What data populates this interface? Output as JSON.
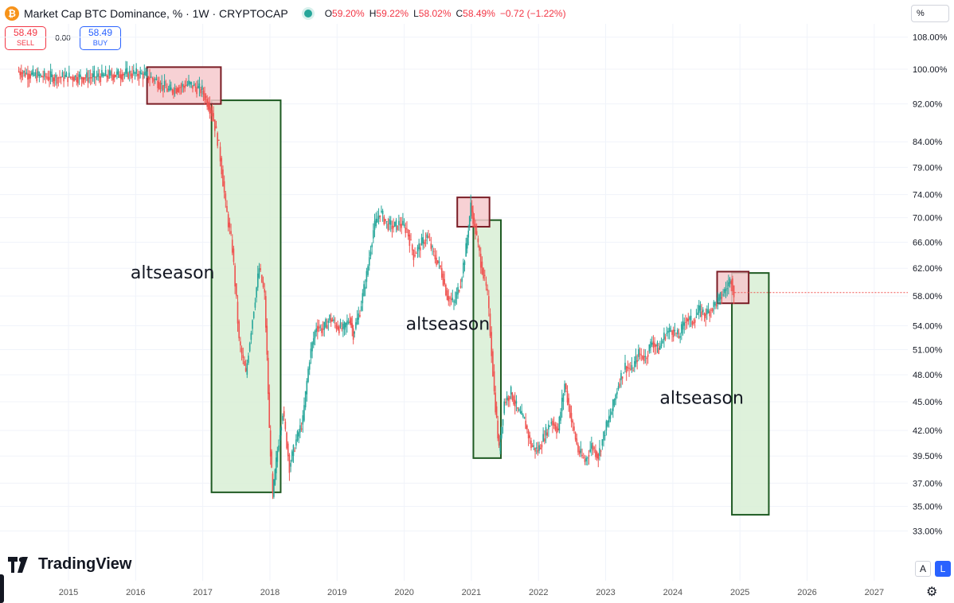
{
  "header": {
    "icon": "bitcoin-icon",
    "title": "Market Cap BTC Dominance, % · 1W · CRYPTOCAP",
    "ohlc": [
      {
        "k": "O",
        "v": "59.20%"
      },
      {
        "k": "H",
        "v": "59.22%"
      },
      {
        "k": "L",
        "v": "58.02%"
      },
      {
        "k": "C",
        "v": "58.49%"
      },
      {
        "k": "",
        "v": "−0.72 (−1.22%)"
      }
    ]
  },
  "trade": {
    "sell_price": "58.49",
    "sell_label": "SELL",
    "spread": "0.00",
    "buy_price": "58.49",
    "buy_label": "BUY"
  },
  "unit_selector": "%",
  "scale_buttons": {
    "auto": "A",
    "log": "L"
  },
  "logo_text": "TradingView",
  "colors": {
    "up": "#26a69a",
    "down": "#ef5350",
    "grid": "#f0f3fa",
    "red_box_fill": "#f6c9cc",
    "red_box_stroke": "#7a1d25",
    "green_box_fill": "#d8efd5",
    "green_box_stroke": "#1e5a22"
  },
  "chart_data": {
    "type": "candlestick",
    "scale": "log",
    "x_axis_ticks": [
      "2015",
      "2016",
      "2017",
      "2018",
      "2019",
      "2020",
      "2021",
      "2022",
      "2023",
      "2024",
      "2025",
      "2026",
      "2027"
    ],
    "y_axis_ticks": [
      "108.00%",
      "100.00%",
      "92.00%",
      "84.00%",
      "79.00%",
      "74.00%",
      "70.00%",
      "66.00%",
      "62.00%",
      "58.00%",
      "54.00%",
      "51.00%",
      "48.00%",
      "45.00%",
      "42.00%",
      "39.50%",
      "37.00%",
      "35.00%",
      "33.00%"
    ],
    "y_tick_values": [
      108,
      100,
      92,
      84,
      79,
      74,
      70,
      66,
      62,
      58,
      54,
      51,
      48,
      45,
      42,
      39.5,
      37,
      35,
      33
    ],
    "xlim": [
      2013.98,
      2027.5
    ],
    "ylim": [
      31.3,
      111.5
    ],
    "series": [
      {
        "points": [
          [
            2014.25,
            99.5
          ],
          [
            2014.5,
            98.5
          ],
          [
            2014.8,
            98.0
          ],
          [
            2015.0,
            98.2
          ],
          [
            2015.3,
            98.0
          ],
          [
            2015.6,
            98.5
          ],
          [
            2015.9,
            99.0
          ],
          [
            2016.1,
            98.8
          ],
          [
            2016.3,
            97.5
          ],
          [
            2016.5,
            95.0
          ],
          [
            2016.8,
            96.5
          ],
          [
            2017.0,
            95.0
          ],
          [
            2017.15,
            90.0
          ],
          [
            2017.25,
            83.0
          ],
          [
            2017.35,
            72.0
          ],
          [
            2017.45,
            65.0
          ],
          [
            2017.55,
            52.0
          ],
          [
            2017.65,
            48.0
          ],
          [
            2017.75,
            55.0
          ],
          [
            2017.85,
            62.0
          ],
          [
            2017.93,
            58.0
          ],
          [
            2018.0,
            42.0
          ],
          [
            2018.05,
            35.8
          ],
          [
            2018.12,
            40.0
          ],
          [
            2018.2,
            44.0
          ],
          [
            2018.3,
            38.5
          ],
          [
            2018.4,
            41.0
          ],
          [
            2018.5,
            43.0
          ],
          [
            2018.6,
            50.0
          ],
          [
            2018.7,
            54.0
          ],
          [
            2018.8,
            53.5
          ],
          [
            2018.9,
            55.0
          ],
          [
            2019.0,
            54.0
          ],
          [
            2019.1,
            53.5
          ],
          [
            2019.2,
            55.0
          ],
          [
            2019.25,
            53.0
          ],
          [
            2019.35,
            56.0
          ],
          [
            2019.45,
            61.0
          ],
          [
            2019.55,
            68.0
          ],
          [
            2019.65,
            71.0
          ],
          [
            2019.75,
            69.0
          ],
          [
            2019.85,
            68.5
          ],
          [
            2019.95,
            69.0
          ],
          [
            2020.05,
            68.0
          ],
          [
            2020.15,
            64.0
          ],
          [
            2020.25,
            65.5
          ],
          [
            2020.35,
            67.0
          ],
          [
            2020.45,
            64.0
          ],
          [
            2020.55,
            62.0
          ],
          [
            2020.65,
            58.0
          ],
          [
            2020.75,
            57.0
          ],
          [
            2020.85,
            60.0
          ],
          [
            2020.93,
            65.0
          ],
          [
            2021.0,
            72.0
          ],
          [
            2021.05,
            69.0
          ],
          [
            2021.15,
            63.0
          ],
          [
            2021.25,
            58.0
          ],
          [
            2021.35,
            46.0
          ],
          [
            2021.42,
            40.0
          ],
          [
            2021.5,
            45.0
          ],
          [
            2021.6,
            46.0
          ],
          [
            2021.7,
            44.0
          ],
          [
            2021.8,
            43.0
          ],
          [
            2021.9,
            40.5
          ],
          [
            2022.0,
            40.0
          ],
          [
            2022.1,
            41.5
          ],
          [
            2022.2,
            43.0
          ],
          [
            2022.3,
            42.0
          ],
          [
            2022.4,
            47.0
          ],
          [
            2022.5,
            43.0
          ],
          [
            2022.6,
            40.0
          ],
          [
            2022.7,
            39.0
          ],
          [
            2022.8,
            40.5
          ],
          [
            2022.9,
            39.5
          ],
          [
            2023.0,
            42.0
          ],
          [
            2023.1,
            44.0
          ],
          [
            2023.2,
            47.0
          ],
          [
            2023.3,
            49.0
          ],
          [
            2023.4,
            48.5
          ],
          [
            2023.5,
            50.5
          ],
          [
            2023.6,
            50.0
          ],
          [
            2023.7,
            52.0
          ],
          [
            2023.8,
            51.0
          ],
          [
            2023.9,
            53.0
          ],
          [
            2024.0,
            53.5
          ],
          [
            2024.1,
            52.5
          ],
          [
            2024.2,
            55.0
          ],
          [
            2024.3,
            54.5
          ],
          [
            2024.4,
            56.0
          ],
          [
            2024.5,
            55.5
          ],
          [
            2024.6,
            56.5
          ],
          [
            2024.7,
            57.5
          ],
          [
            2024.8,
            59.0
          ],
          [
            2024.88,
            60.5
          ],
          [
            2024.92,
            58.49
          ]
        ]
      }
    ],
    "annotations": {
      "red_boxes": [
        {
          "x0": 2016.17,
          "x1": 2017.27,
          "y0": 92.0,
          "y1": 100.5
        },
        {
          "x0": 2020.79,
          "x1": 2021.27,
          "y0": 68.5,
          "y1": 73.5
        },
        {
          "x0": 2024.66,
          "x1": 2025.13,
          "y0": 57.0,
          "y1": 61.5
        }
      ],
      "green_boxes": [
        {
          "x0": 2017.13,
          "x1": 2018.16,
          "y0": 36.2,
          "y1": 92.8
        },
        {
          "x0": 2021.03,
          "x1": 2021.44,
          "y0": 39.3,
          "y1": 69.6
        },
        {
          "x0": 2024.88,
          "x1": 2025.43,
          "y0": 34.3,
          "y1": 61.3
        }
      ],
      "labels": [
        {
          "text": "altseason",
          "x": 2016.55,
          "y": 60.5
        },
        {
          "text": "altseason",
          "x": 2020.65,
          "y": 53.5
        },
        {
          "text": "altseason",
          "x": 2024.43,
          "y": 44.8
        }
      ]
    }
  }
}
